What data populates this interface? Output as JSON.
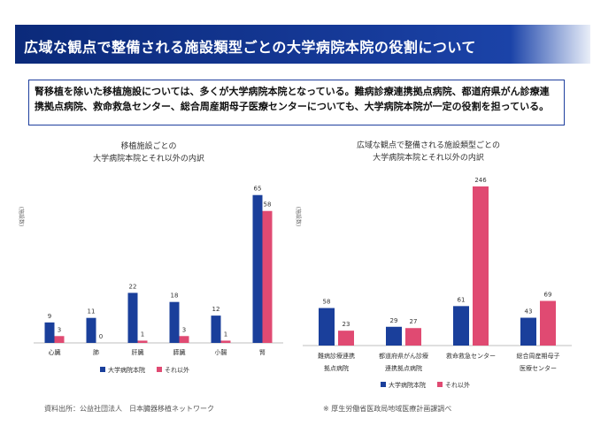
{
  "header": {
    "title": "広域な観点で整備される施設類型ごとの大学病院本院の役割について"
  },
  "summary": {
    "text": "腎移植を除いた移植施設については、多くが大学病院本院となっている。難病診療連携拠点病院、都道府県がん診療連携拠点病院、救命救急センター、総合周産期母子医療センターについても、大学病院本院が一定の役割を担っている。"
  },
  "colors": {
    "univ": "#1a3f9b",
    "other": "#e04a72"
  },
  "chart_data": [
    {
      "type": "bar",
      "title_lines": [
        "移植施設ごとの",
        "大学病院本院とそれ以外の内訳"
      ],
      "ylabel": "(施設数)",
      "categories": [
        "心臓",
        "肺",
        "肝臓",
        "膵臓",
        "小腸",
        "腎"
      ],
      "ylim": [
        0,
        68
      ],
      "series": [
        {
          "name": "大学病院本院",
          "values": [
            9,
            11,
            22,
            18,
            12,
            65
          ]
        },
        {
          "name": "それ以外",
          "values": [
            3,
            0,
            1,
            3,
            1,
            58
          ]
        }
      ]
    },
    {
      "type": "bar",
      "title_lines": [
        "広域な観点で整備される施設類型ごとの",
        "大学病院本院とそれ以外の内訳"
      ],
      "ylabel": "(施設数)",
      "categories": [
        [
          "難病診療連携",
          "拠点病院"
        ],
        [
          "都道府県がん診療",
          "連携拠点病院"
        ],
        [
          "救命救急センター"
        ],
        [
          "総合周産期母子",
          "医療センター"
        ]
      ],
      "ylim": [
        0,
        250
      ],
      "series": [
        {
          "name": "大学病院本院",
          "values": [
            58,
            29,
            61,
            43
          ]
        },
        {
          "name": "それ以外",
          "values": [
            23,
            27,
            246,
            69
          ]
        }
      ]
    }
  ],
  "footer": {
    "left_source": "資料出所：公益社団法人　日本臓器移植ネットワーク",
    "right_source": "※ 厚生労働省医政局地域医療計画課調べ"
  }
}
